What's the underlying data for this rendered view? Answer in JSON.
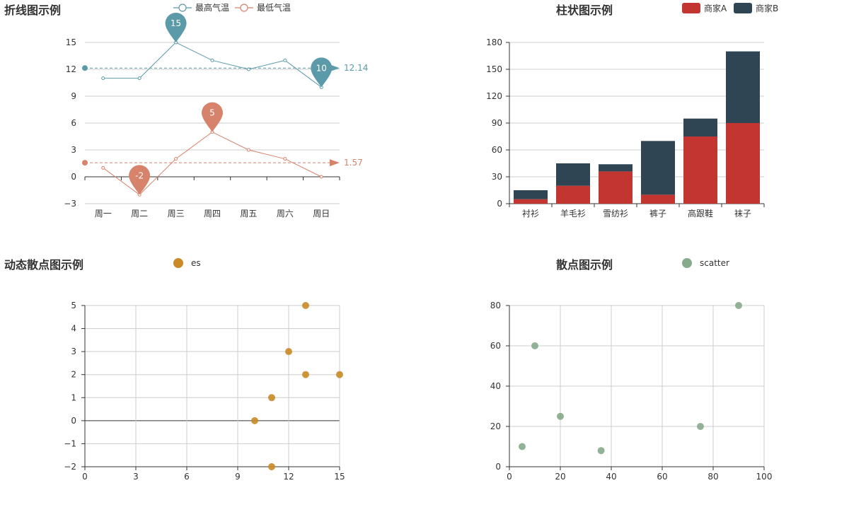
{
  "colors": {
    "teal": "#5b9aa8",
    "salmon": "#d7826b",
    "red": "#c23531",
    "navy": "#2f4554",
    "orange": "#c98a27",
    "green": "#86aa8a",
    "axis": "#333333",
    "grid": "#cccccc"
  },
  "chart_data": [
    {
      "type": "line",
      "title": "折线图示例",
      "categories": [
        "周一",
        "周二",
        "周三",
        "周四",
        "周五",
        "周六",
        "周日"
      ],
      "series": [
        {
          "name": "最高气温",
          "values": [
            11,
            11,
            15,
            13,
            12,
            13,
            10
          ],
          "color": "#5b9aa8",
          "mark_points": [
            {
              "value": 15,
              "index": 2
            },
            {
              "value": 10,
              "index": 6
            }
          ],
          "mark_line": {
            "value": 12.14,
            "label": "12.14"
          }
        },
        {
          "name": "最低气温",
          "values": [
            1,
            -2,
            2,
            5,
            3,
            2,
            0
          ],
          "color": "#d7826b",
          "mark_points": [
            {
              "value": 5,
              "index": 3
            },
            {
              "value": -2,
              "index": 1
            }
          ],
          "mark_line": {
            "value": 1.57,
            "label": "1.57"
          }
        }
      ],
      "ylim": [
        -3,
        15
      ],
      "yticks": [
        "−3",
        "0",
        "3",
        "6",
        "9",
        "12",
        "15"
      ],
      "legend": "top-center",
      "grid": true
    },
    {
      "type": "bar",
      "stacked": true,
      "title": "柱状图示例",
      "categories": [
        "衬衫",
        "羊毛衫",
        "雪纺衫",
        "裤子",
        "高跟鞋",
        "袜子"
      ],
      "series": [
        {
          "name": "商家A",
          "values": [
            5,
            20,
            36,
            10,
            75,
            90
          ],
          "color": "#c23531"
        },
        {
          "name": "商家B",
          "values": [
            10,
            25,
            8,
            60,
            20,
            80
          ],
          "color": "#2f4554"
        }
      ],
      "ylim": [
        0,
        180
      ],
      "yticks": [
        "0",
        "30",
        "60",
        "90",
        "120",
        "150",
        "180"
      ],
      "legend": "top-right",
      "grid": true
    },
    {
      "type": "scatter",
      "title": "动态散点图示例",
      "series": [
        {
          "name": "es",
          "color": "#c98a27",
          "points": [
            [
              10,
              0
            ],
            [
              11,
              1
            ],
            [
              12,
              3
            ],
            [
              13,
              5
            ],
            [
              13,
              2
            ],
            [
              15,
              2
            ],
            [
              11,
              -2
            ]
          ]
        }
      ],
      "xlim": [
        0,
        15
      ],
      "ylim": [
        -2,
        5
      ],
      "xticks": [
        "0",
        "3",
        "6",
        "9",
        "12",
        "15"
      ],
      "yticks": [
        "−2",
        "−1",
        "0",
        "1",
        "2",
        "3",
        "4",
        "5"
      ],
      "legend": "top-center",
      "grid": true
    },
    {
      "type": "scatter",
      "title": "散点图示例",
      "series": [
        {
          "name": "scatter",
          "color": "#86aa8a",
          "points": [
            [
              5,
              10
            ],
            [
              10,
              60
            ],
            [
              20,
              25
            ],
            [
              36,
              8
            ],
            [
              75,
              20
            ],
            [
              90,
              80
            ]
          ]
        }
      ],
      "xlim": [
        0,
        100
      ],
      "ylim": [
        0,
        80
      ],
      "xticks": [
        "0",
        "20",
        "40",
        "60",
        "80",
        "100"
      ],
      "yticks": [
        "0",
        "20",
        "40",
        "60",
        "80"
      ],
      "legend": "top-center",
      "grid": true
    }
  ]
}
